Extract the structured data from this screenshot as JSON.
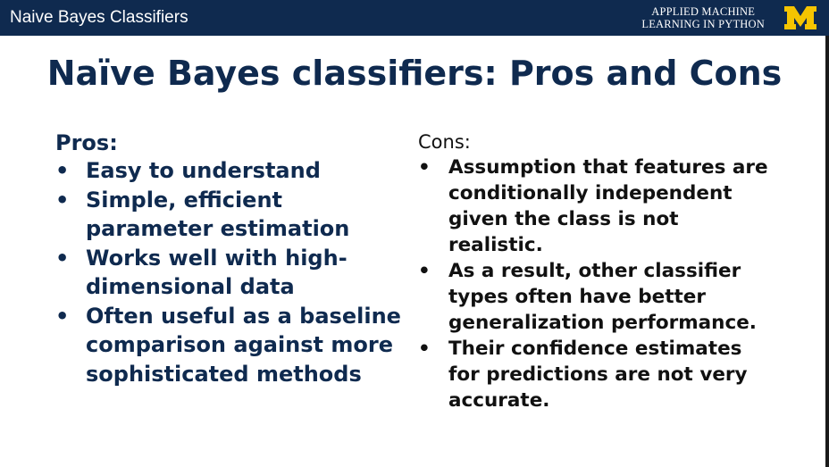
{
  "header": {
    "deck_title": "Naive Bayes Classifiers",
    "course_line1": "APPLIED MACHINE",
    "course_line2": "LEARNING IN PYTHON",
    "logo_icon": "block-m-logo-icon",
    "logo_text": "M"
  },
  "colors": {
    "header_bg": "#0f2a4f",
    "title_color": "#0f2a4f",
    "logo_maize": "#f5c400"
  },
  "slide": {
    "title": "Naïve Bayes classifiers: Pros and Cons",
    "pros": {
      "heading": "Pros:",
      "items": [
        "Easy to understand",
        "Simple, efficient parameter estimation",
        "Works well with high-dimensional data",
        "Often useful as a baseline comparison against more sophisticated methods"
      ]
    },
    "cons": {
      "heading": "Cons:",
      "items": [
        "Assumption that features are conditionally independent given the class is not realistic.",
        "As a result, other classifier types often have better generalization performance.",
        "Their confidence estimates for predictions are not very accurate."
      ]
    }
  }
}
